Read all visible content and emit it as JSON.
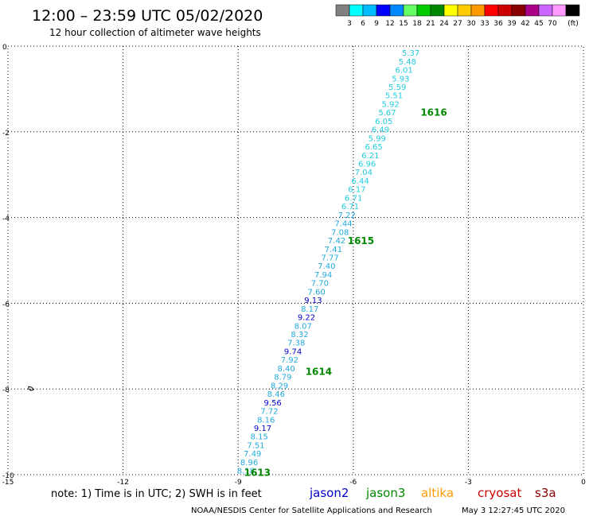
{
  "header": {
    "title": "12:00 – 23:59 UTC 05/02/2020",
    "subtitle": "12 hour collection of altimeter wave heights"
  },
  "colorbar": {
    "colors": [
      "#808080",
      "#00ffff",
      "#00bbff",
      "#0000ff",
      "#0088ff",
      "#66ff66",
      "#00cc00",
      "#008800",
      "#ffff00",
      "#ffcc00",
      "#ff9900",
      "#ff0000",
      "#cc0000",
      "#880000",
      "#aa0088",
      "#cc66ff",
      "#ff99ff",
      "#000000"
    ],
    "labels": [
      "3",
      "6",
      "9",
      "12",
      "15",
      "18",
      "21",
      "24",
      "27",
      "30",
      "33",
      "36",
      "39",
      "42",
      "45",
      "70"
    ],
    "unit": "(ft)"
  },
  "footer": {
    "note": "note: 1) Time is in UTC; 2) SWH is in feet",
    "credit": "NOAA/NESDIS Center for Satellite Applications and Research",
    "timestamp": "May  3 12:27:45 UTC 2020",
    "legend": [
      {
        "name": "jason2",
        "color": "#0000cc"
      },
      {
        "name": "jason3",
        "color": "#008800"
      },
      {
        "name": "altika",
        "color": "#ff9900"
      },
      {
        "name": "cryosat",
        "color": "#cc0000"
      },
      {
        "name": "s3a",
        "color": "#880000"
      }
    ]
  },
  "chart_data": {
    "type": "scatter",
    "xlim": [
      -15,
      0
    ],
    "ylim": [
      -10,
      0
    ],
    "xticks": [
      "-15",
      "-12",
      "-9",
      "-6",
      "-3",
      "0"
    ],
    "yticks": [
      "0",
      "-2",
      "-4",
      "-6",
      "-8",
      "-10"
    ],
    "xtick_values": [
      -15,
      -12,
      -9,
      -6,
      -3,
      0
    ],
    "ytick_values": [
      0,
      -2,
      -4,
      -6,
      -8,
      -10
    ],
    "grid": true,
    "island_marker": {
      "x": -14.4,
      "y": -8.0
    },
    "time_labels": [
      {
        "text": "1616",
        "x": -3.9,
        "y": -1.55,
        "color": "#008800"
      },
      {
        "text": "1615",
        "x": -5.8,
        "y": -4.55,
        "color": "#008800"
      },
      {
        "text": "1614",
        "x": -6.9,
        "y": -7.6,
        "color": "#008800"
      },
      {
        "text": "1613",
        "x": -8.5,
        "y": -9.95,
        "color": "#008800"
      }
    ],
    "track_start": {
      "x": -4.5,
      "y": -0.15
    },
    "track_end": {
      "x": -8.8,
      "y": -9.9
    },
    "points": [
      {
        "label": "5.37",
        "color": "#22ccdd"
      },
      {
        "label": "5.48",
        "color": "#22ccdd"
      },
      {
        "label": "6.01",
        "color": "#22ccdd"
      },
      {
        "label": "5.93",
        "color": "#22ccdd"
      },
      {
        "label": "5.59",
        "color": "#22ccdd"
      },
      {
        "label": "5.51",
        "color": "#22ccdd"
      },
      {
        "label": "5.92",
        "color": "#22ccdd"
      },
      {
        "label": "5.67",
        "color": "#22ccdd"
      },
      {
        "label": "6.05",
        "color": "#22ccdd"
      },
      {
        "label": "6.49",
        "color": "#22ccdd"
      },
      {
        "label": "5.99",
        "color": "#22ccdd"
      },
      {
        "label": "6.65",
        "color": "#22ccdd"
      },
      {
        "label": "6.21",
        "color": "#22ccdd"
      },
      {
        "label": "6.96",
        "color": "#22ccdd"
      },
      {
        "label": "7.04",
        "color": "#22ccdd"
      },
      {
        "label": "6.44",
        "color": "#22ccdd"
      },
      {
        "label": "6.17",
        "color": "#22ccdd"
      },
      {
        "label": "6.71",
        "color": "#22ccdd"
      },
      {
        "label": "6.71",
        "color": "#22ccdd"
      },
      {
        "label": "7.22",
        "color": "#22aadd"
      },
      {
        "label": "7.44",
        "color": "#22aadd"
      },
      {
        "label": "7.08",
        "color": "#22aadd"
      },
      {
        "label": "7.42",
        "color": "#22aadd"
      },
      {
        "label": "7.41",
        "color": "#22aadd"
      },
      {
        "label": "7.77",
        "color": "#22aadd"
      },
      {
        "label": "7.40",
        "color": "#22aadd"
      },
      {
        "label": "7.94",
        "color": "#22aadd"
      },
      {
        "label": "7.70",
        "color": "#22aadd"
      },
      {
        "label": "7.60",
        "color": "#22aadd"
      },
      {
        "label": "9.13",
        "color": "#0000cc"
      },
      {
        "label": "8.17",
        "color": "#22aadd"
      },
      {
        "label": "9.22",
        "color": "#0000cc"
      },
      {
        "label": "8.07",
        "color": "#22aadd"
      },
      {
        "label": "8.32",
        "color": "#22aadd"
      },
      {
        "label": "7.38",
        "color": "#22aadd"
      },
      {
        "label": "9.74",
        "color": "#0000cc"
      },
      {
        "label": "7.92",
        "color": "#22aadd"
      },
      {
        "label": "8.40",
        "color": "#22aadd"
      },
      {
        "label": "8.79",
        "color": "#22aadd"
      },
      {
        "label": "8.29",
        "color": "#22aadd"
      },
      {
        "label": "8.46",
        "color": "#22aadd"
      },
      {
        "label": "9.56",
        "color": "#0000cc"
      },
      {
        "label": "7.72",
        "color": "#22aadd"
      },
      {
        "label": "8.16",
        "color": "#22aadd"
      },
      {
        "label": "9.17",
        "color": "#0000cc"
      },
      {
        "label": "8.15",
        "color": "#22aadd"
      },
      {
        "label": "7.51",
        "color": "#22aadd"
      },
      {
        "label": "7.49",
        "color": "#22aadd"
      },
      {
        "label": "8.96",
        "color": "#22aadd"
      },
      {
        "label": "8.18",
        "color": "#22aadd"
      }
    ]
  }
}
